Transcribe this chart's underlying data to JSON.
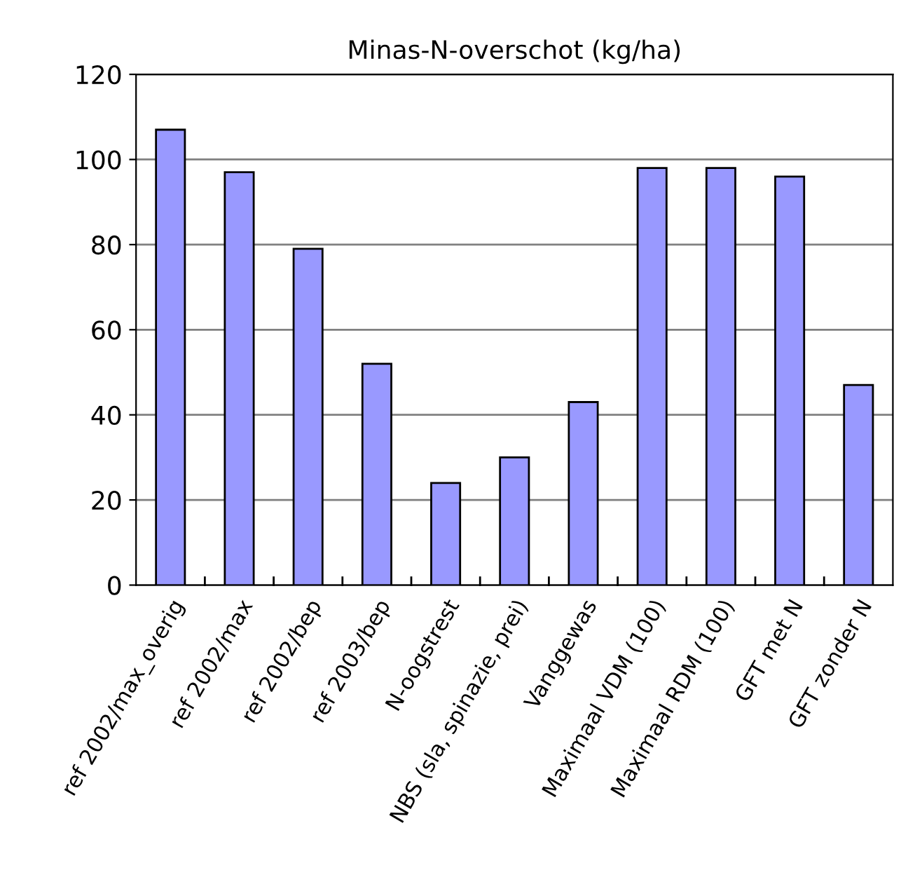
{
  "chart_data": {
    "type": "bar",
    "title": "Minas-N-overschot (kg/ha)",
    "categories": [
      "ref 2002/max_overig",
      "ref 2002/max",
      "ref 2002/bep",
      "ref 2003/bep",
      "N-oogstrest",
      "NBS (sla, spinazie, prei)",
      "Vanggewas",
      "Maximaal VDM (100)",
      "Maximaal RDM (100)",
      "GFT met N",
      "GFT zonder N"
    ],
    "values": [
      107,
      97,
      79,
      52,
      24,
      30,
      43,
      98,
      98,
      96,
      47
    ],
    "color": "#9999ff",
    "ylim": [
      0,
      120
    ],
    "yticks": [
      0,
      20,
      40,
      60,
      80,
      100,
      120
    ],
    "grid": "y",
    "legend": false
  }
}
